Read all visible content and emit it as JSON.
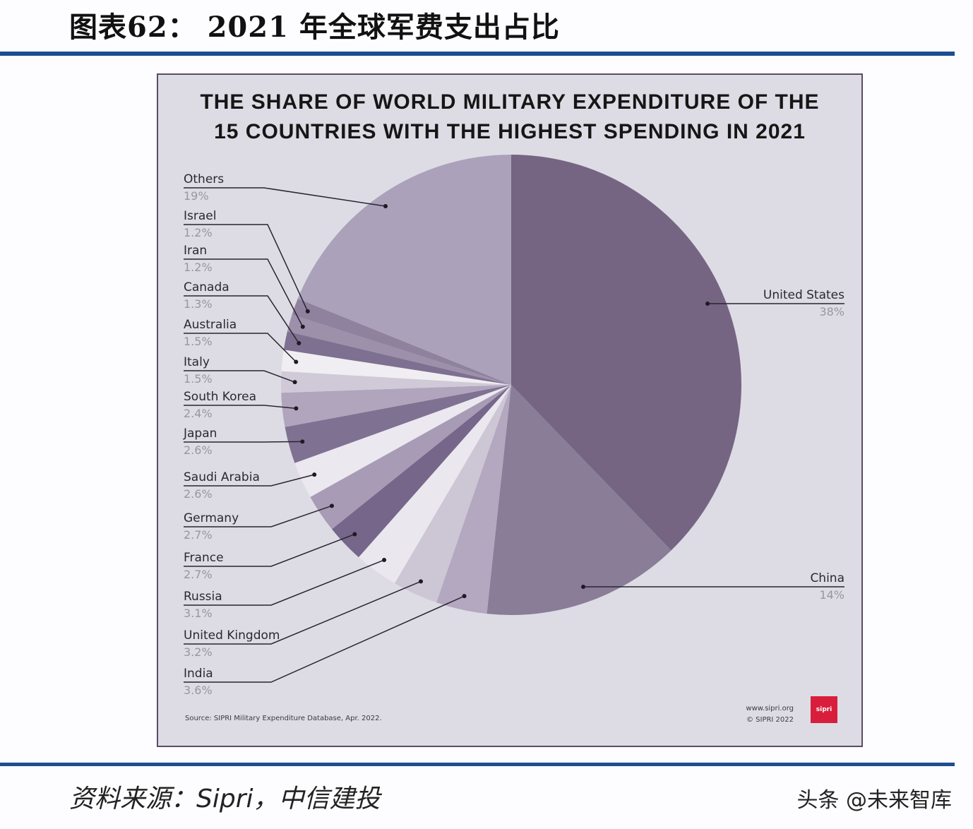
{
  "header": {
    "figure_title": "图表62：  2021 年全球军费支出占比"
  },
  "chart_data": {
    "type": "pie",
    "title": "THE SHARE OF WORLD MILITARY EXPENDITURE OF THE 15 COUNTRIES WITH THE HIGHEST SPENDING IN 2021",
    "title_lines": [
      "THE SHARE OF WORLD MILITARY EXPENDITURE OF THE",
      "15 COUNTRIES WITH THE HIGHEST SPENDING IN 2021"
    ],
    "start_angle": "12 o'clock, clockwise",
    "unit": "%",
    "slices": [
      {
        "label": "United States",
        "value": 38,
        "display": "38%",
        "color": "#756583"
      },
      {
        "label": "China",
        "value": 14,
        "display": "14%",
        "color": "#8a7d98"
      },
      {
        "label": "India",
        "value": 3.6,
        "display": "3.6%",
        "color": "#b3a8c0"
      },
      {
        "label": "United Kingdom",
        "value": 3.2,
        "display": "3.2%",
        "color": "#cdc6d5"
      },
      {
        "label": "Russia",
        "value": 3.1,
        "display": "3.1%",
        "color": "#eae7ee"
      },
      {
        "label": "France",
        "value": 2.7,
        "display": "2.7%",
        "color": "#75668a"
      },
      {
        "label": "Germany",
        "value": 2.7,
        "display": "2.7%",
        "color": "#a89bb6"
      },
      {
        "label": "Saudi Arabia",
        "value": 2.6,
        "display": "2.6%",
        "color": "#ebe8ef"
      },
      {
        "label": "Japan",
        "value": 2.6,
        "display": "2.6%",
        "color": "#7f7192"
      },
      {
        "label": "South Korea",
        "value": 2.4,
        "display": "2.4%",
        "color": "#b0a5bd"
      },
      {
        "label": "Italy",
        "value": 1.5,
        "display": "1.5%",
        "color": "#d0cad8"
      },
      {
        "label": "Australia",
        "value": 1.5,
        "display": "1.5%",
        "color": "#f0eef3"
      },
      {
        "label": "Canada",
        "value": 1.3,
        "display": "1.3%",
        "color": "#7e7090"
      },
      {
        "label": "Iran",
        "value": 1.2,
        "display": "1.2%",
        "color": "#9d90ab"
      },
      {
        "label": "Israel",
        "value": 1.2,
        "display": "1.2%",
        "color": "#8f829f"
      },
      {
        "label": "Others",
        "value": 19,
        "display": "19%",
        "color": "#aca1ba"
      }
    ],
    "source": "Source: SIPRI Military Expenditure Database, Apr. 2022.",
    "website": "www.sipri.org",
    "copyright": "© SIPRI 2022",
    "logo_text": "sipri",
    "logo_color": "#d81e3c"
  },
  "footer": {
    "source_note": "资料来源：Sipri，中信建投",
    "watermark": "头条 @未来智库"
  },
  "colors": {
    "rule": "#1d4e8f",
    "panel_bg": "#dddce4",
    "panel_border": "#5d4a64"
  }
}
